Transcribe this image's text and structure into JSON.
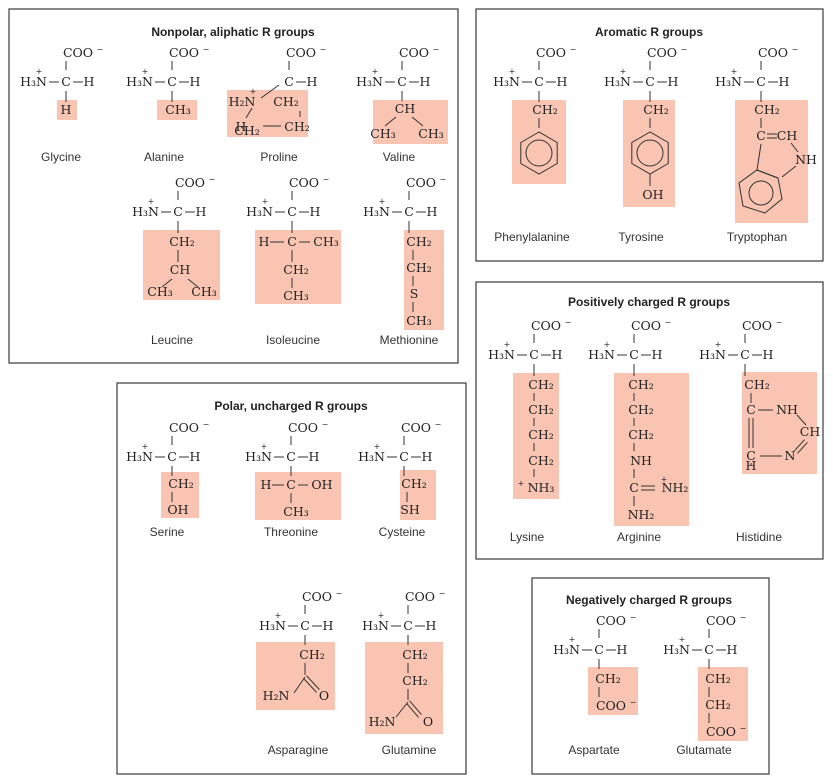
{
  "panels": {
    "nonpolar": "Nonpolar, aliphatic R groups",
    "aromatic": "Aromatic R groups",
    "positive": "Positively charged R groups",
    "polar": "Polar, uncharged R groups",
    "negative": "Negatively charged R groups"
  },
  "amino_acids": {
    "glycine": "Glycine",
    "alanine": "Alanine",
    "proline": "Proline",
    "valine": "Valine",
    "leucine": "Leucine",
    "isoleucine": "Isoleucine",
    "methionine": "Methionine",
    "phenylalanine": "Phenylalanine",
    "tyrosine": "Tyrosine",
    "tryptophan": "Tryptophan",
    "lysine": "Lysine",
    "arginine": "Arginine",
    "histidine": "Histidine",
    "serine": "Serine",
    "threonine": "Threonine",
    "cysteine": "Cysteine",
    "asparagine": "Asparagine",
    "glutamine": "Glutamine",
    "aspartate": "Aspartate",
    "glutamate": "Glutamate"
  },
  "chem": {
    "coo": "COO",
    "minus": "−",
    "plus": "+",
    "h3n": "H₃N",
    "h2n": "H₂N",
    "c": "C",
    "h": "H",
    "ch": "CH",
    "ch2": "CH₂",
    "ch3": "CH₃",
    "oh": "OH",
    "sh": "SH",
    "s": "S",
    "nh": "NH",
    "n": "N",
    "o": "O",
    "nh2": "NH₂",
    "nh3": "NH₃"
  }
}
